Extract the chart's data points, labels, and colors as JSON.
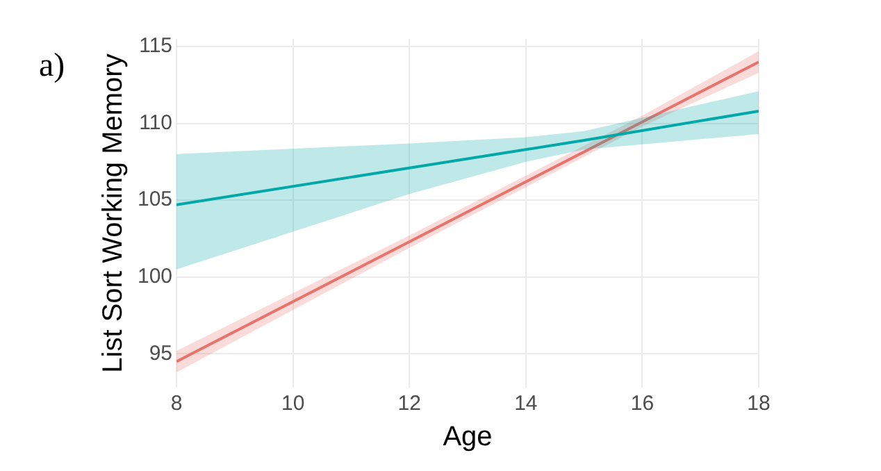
{
  "chart_data": {
    "type": "line",
    "title": "a)",
    "xlabel": "Age",
    "ylabel": "List Sort Working Memory",
    "xlim": [
      8,
      18
    ],
    "xticks": [
      8,
      10,
      12,
      14,
      16,
      18
    ],
    "ylim": [
      92.8,
      115.5
    ],
    "yticks": [
      95,
      100,
      105,
      110,
      115
    ],
    "grid": true,
    "legend": false,
    "marker": "none",
    "line_style": "solid",
    "series": [
      {
        "color": "#00a9a9",
        "x": [
          8,
          12,
          14,
          15,
          18
        ],
        "values": [
          104.7,
          107.1,
          108.3,
          108.9,
          110.8
        ],
        "lower": [
          100.5,
          105.4,
          107.5,
          108.3,
          109.3
        ],
        "upper": [
          108,
          108.7,
          109.1,
          109.5,
          112.1
        ]
      },
      {
        "color": "#e8736c",
        "x": [
          8,
          12,
          16,
          18
        ],
        "values": [
          94.5,
          102.3,
          110.1,
          114
        ],
        "lower": [
          93.8,
          101.9,
          109.8,
          113.3
        ],
        "upper": [
          95.2,
          102.7,
          110.5,
          114.7
        ]
      }
    ]
  }
}
